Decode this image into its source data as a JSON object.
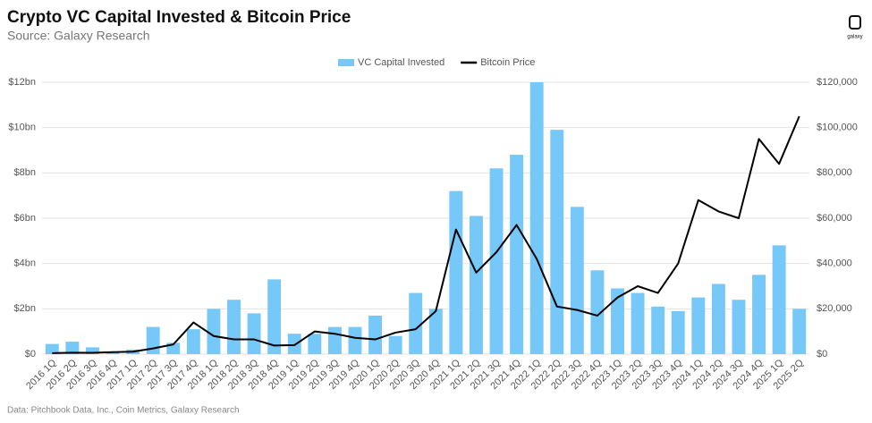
{
  "chart_data": {
    "type": "combo",
    "title": "Crypto VC Capital Invested & Bitcoin Price",
    "subtitle": "Source: Galaxy Research",
    "source": "Data: Pitchbook Data, Inc., Coin Metrics, Galaxy Research",
    "logo_text": "galaxy",
    "categories": [
      "2016 1Q",
      "2016 2Q",
      "2016 3Q",
      "2016 4Q",
      "2017 1Q",
      "2017 2Q",
      "2017 3Q",
      "2017 4Q",
      "2018 1Q",
      "2018 2Q",
      "2018 3Q",
      "2018 4Q",
      "2019 1Q",
      "2019 2Q",
      "2019 3Q",
      "2019 4Q",
      "2020 1Q",
      "2020 2Q",
      "2020 3Q",
      "2020 4Q",
      "2021 1Q",
      "2021 2Q",
      "2021 3Q",
      "2021 4Q",
      "2022 1Q",
      "2022 2Q",
      "2022 3Q",
      "2022 4Q",
      "2023 1Q",
      "2023 2Q",
      "2023 3Q",
      "2023 4Q",
      "2024 1Q",
      "2024 2Q",
      "2024 3Q",
      "2024 4Q",
      "2025 1Q",
      "2025 2Q"
    ],
    "series": [
      {
        "name": "VC Capital Invested",
        "type": "bar",
        "color": "#75c8f7",
        "values": [
          0.45,
          0.55,
          0.3,
          0.1,
          0.2,
          1.2,
          0.5,
          1.1,
          2.0,
          2.4,
          1.8,
          3.3,
          0.9,
          0.9,
          1.2,
          1.2,
          1.7,
          0.8,
          2.7,
          2.0,
          7.2,
          6.1,
          8.2,
          8.8,
          12.0,
          9.9,
          6.5,
          3.7,
          2.9,
          2.7,
          2.1,
          1.9,
          2.5,
          3.1,
          2.4,
          3.5,
          4.8,
          2.0
        ]
      },
      {
        "name": "Bitcoin Price",
        "type": "line",
        "color": "#000000",
        "axis": "y2",
        "values": [
          420,
          650,
          610,
          900,
          1100,
          2500,
          4300,
          14000,
          8000,
          6500,
          6500,
          3800,
          4000,
          10000,
          9000,
          7200,
          6500,
          9500,
          11000,
          19000,
          55000,
          36000,
          45000,
          57000,
          42000,
          21000,
          19500,
          17000,
          25000,
          30000,
          27000,
          40000,
          68000,
          63000,
          60000,
          95000,
          84000,
          105000
        ]
      }
    ],
    "ylim": [
      0,
      12
    ],
    "yticks": [
      {
        "value": 0,
        "label": "$0"
      },
      {
        "value": 2,
        "label": "$2bn"
      },
      {
        "value": 4,
        "label": "$4bn"
      },
      {
        "value": 6,
        "label": "$6bn"
      },
      {
        "value": 8,
        "label": "$8bn"
      },
      {
        "value": 10,
        "label": "$10bn"
      },
      {
        "value": 12,
        "label": "$12bn"
      }
    ],
    "y2lim": [
      0,
      120000
    ],
    "y2ticks": [
      {
        "value": 0,
        "label": "$0"
      },
      {
        "value": 20000,
        "label": "$20,000"
      },
      {
        "value": 40000,
        "label": "$40,000"
      },
      {
        "value": 60000,
        "label": "$60,000"
      },
      {
        "value": 80000,
        "label": "$80,000"
      },
      {
        "value": 100000,
        "label": "$100,000"
      },
      {
        "value": 120000,
        "label": "$120,000"
      }
    ],
    "grid": true
  }
}
